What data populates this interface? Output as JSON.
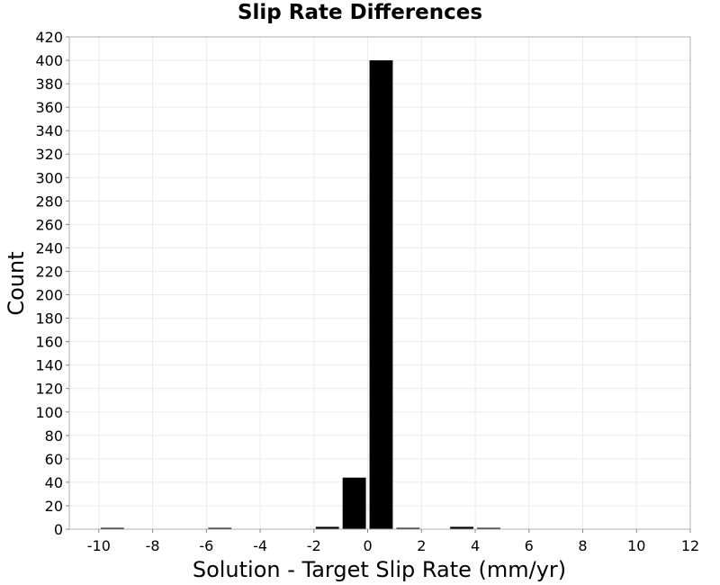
{
  "chart_data": {
    "type": "bar",
    "title": "Slip Rate Differences",
    "xlabel": "Solution - Target Slip Rate (mm/yr)",
    "ylabel": "Count",
    "xlim": [
      -11.1,
      12
    ],
    "ylim": [
      0,
      420
    ],
    "x_ticks": [
      -10,
      -8,
      -6,
      -4,
      -2,
      0,
      2,
      4,
      6,
      8,
      10,
      12
    ],
    "y_ticks": [
      0,
      20,
      40,
      60,
      80,
      100,
      120,
      140,
      160,
      180,
      200,
      220,
      240,
      260,
      280,
      300,
      320,
      340,
      360,
      380,
      400,
      420
    ],
    "bin_width": 1,
    "bar_color": "#000000",
    "grid": true,
    "grid_color": "#ebebeb",
    "bars": [
      {
        "x": -9.5,
        "value": 1
      },
      {
        "x": -5.5,
        "value": 1
      },
      {
        "x": -1.5,
        "value": 2
      },
      {
        "x": -0.5,
        "value": 44
      },
      {
        "x": 0.5,
        "value": 400
      },
      {
        "x": 1.5,
        "value": 1
      },
      {
        "x": 3.5,
        "value": 2
      },
      {
        "x": 4.5,
        "value": 1
      }
    ]
  }
}
